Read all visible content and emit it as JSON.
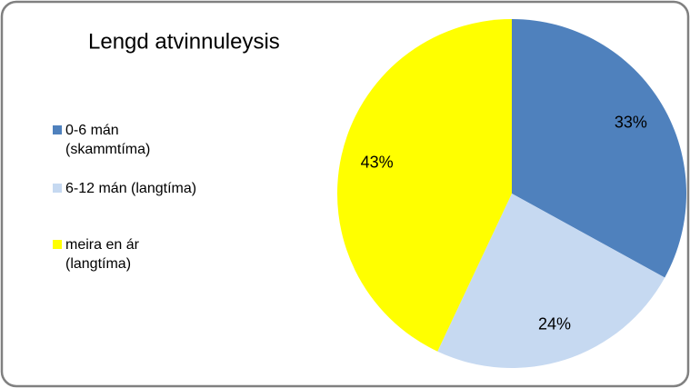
{
  "chart_data": {
    "type": "pie",
    "title": "Lengd atvinnuleysis",
    "categories": [
      "0-6 mán (skammtíma)",
      "6-12 mán (langtíma)",
      "meira en ár (langtíma)"
    ],
    "values": [
      33,
      24,
      43
    ],
    "value_labels": [
      "33%",
      "24%",
      "43%"
    ],
    "colors": [
      "#4f81bd",
      "#c6d9f1",
      "#ffff00"
    ],
    "legend": "left"
  }
}
